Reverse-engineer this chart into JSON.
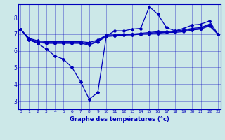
{
  "xlabel": "Graphe des températures (°c)",
  "background_color": "#cce8e8",
  "line_color": "#0000bb",
  "x_ticks": [
    0,
    1,
    2,
    3,
    4,
    5,
    6,
    7,
    8,
    9,
    10,
    11,
    12,
    13,
    14,
    15,
    16,
    17,
    18,
    19,
    20,
    21,
    22,
    23
  ],
  "ylim": [
    2.5,
    8.8
  ],
  "xlim": [
    -0.3,
    23.3
  ],
  "yticks": [
    3,
    4,
    5,
    6,
    7,
    8
  ],
  "series1_x": [
    0,
    1,
    2,
    3,
    4,
    5,
    6,
    7,
    8,
    9,
    10,
    11,
    12,
    13,
    14,
    15,
    16,
    17,
    18,
    19,
    20,
    21,
    22,
    23
  ],
  "series1_y": [
    7.3,
    6.65,
    6.45,
    6.1,
    5.7,
    5.5,
    5.0,
    4.15,
    3.1,
    3.5,
    6.9,
    7.2,
    7.2,
    7.3,
    7.35,
    8.65,
    8.2,
    7.4,
    7.2,
    7.35,
    7.55,
    7.6,
    7.8,
    7.0
  ],
  "series2_x": [
    0,
    1,
    2,
    3,
    4,
    5,
    6,
    7,
    8,
    9,
    10,
    11,
    12,
    13,
    14,
    15,
    16,
    17,
    18,
    19,
    20,
    21,
    22,
    23
  ],
  "series2_y": [
    7.3,
    6.65,
    6.5,
    6.45,
    6.45,
    6.45,
    6.45,
    6.45,
    6.35,
    6.55,
    6.85,
    6.9,
    6.95,
    6.95,
    7.0,
    7.0,
    7.05,
    7.1,
    7.1,
    7.15,
    7.25,
    7.3,
    7.5,
    7.0
  ],
  "series3_x": [
    0,
    1,
    2,
    3,
    4,
    5,
    6,
    7,
    8,
    9,
    10,
    11,
    12,
    13,
    14,
    15,
    16,
    17,
    18,
    19,
    20,
    21,
    22,
    23
  ],
  "series3_y": [
    7.3,
    6.7,
    6.55,
    6.5,
    6.5,
    6.5,
    6.5,
    6.5,
    6.4,
    6.6,
    6.9,
    6.9,
    6.95,
    7.0,
    7.0,
    7.05,
    7.1,
    7.1,
    7.15,
    7.2,
    7.3,
    7.35,
    7.55,
    7.0
  ],
  "series4_x": [
    0,
    1,
    2,
    3,
    4,
    5,
    6,
    7,
    8,
    9,
    10,
    11,
    12,
    13,
    14,
    15,
    16,
    17,
    18,
    19,
    20,
    21,
    22,
    23
  ],
  "series4_y": [
    7.3,
    6.75,
    6.6,
    6.55,
    6.55,
    6.55,
    6.55,
    6.55,
    6.5,
    6.65,
    6.95,
    6.95,
    7.0,
    7.0,
    7.05,
    7.1,
    7.15,
    7.15,
    7.2,
    7.25,
    7.35,
    7.4,
    7.6,
    7.0
  ]
}
